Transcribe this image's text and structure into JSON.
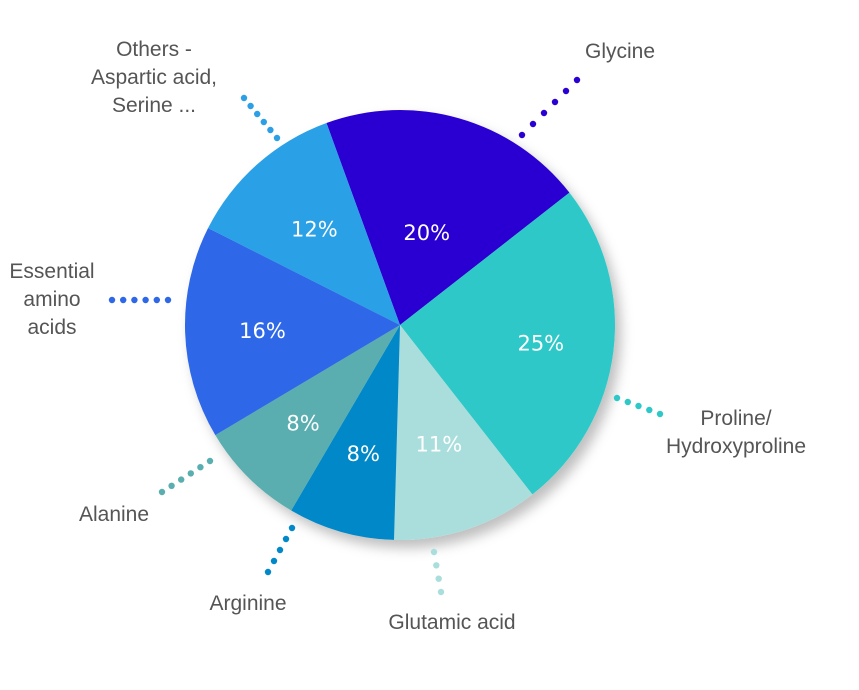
{
  "chart_data": {
    "type": "pie",
    "title": "",
    "slices": [
      {
        "label": "Glycine",
        "value": 20,
        "value_label": "20%",
        "color": "#2b00d2",
        "label_color": "#ffffff"
      },
      {
        "label": "Proline/\nHydroxyproline",
        "value": 25,
        "value_label": "25%",
        "color": "#2ec8c8",
        "label_color": "#ffffff"
      },
      {
        "label": "Glutamic acid",
        "value": 11,
        "value_label": "11%",
        "color": "#a9dedd",
        "label_color": "#ffffff"
      },
      {
        "label": "Arginine",
        "value": 8,
        "value_label": "8%",
        "color": "#0088c8",
        "label_color": "#ffffff"
      },
      {
        "label": "Alanine",
        "value": 8,
        "value_label": "8%",
        "color": "#5aaeb0",
        "label_color": "#ffffcc"
      },
      {
        "label": "Essential\namino\nacids",
        "value": 16,
        "value_label": "16%",
        "color": "#2e67e8",
        "label_color": "#ffffff"
      },
      {
        "label": "Others -\nAspartic acid,\nSerine ...",
        "value": 12,
        "value_label": "12%",
        "color": "#2ba0e6",
        "label_color": "#ffffff"
      }
    ]
  }
}
